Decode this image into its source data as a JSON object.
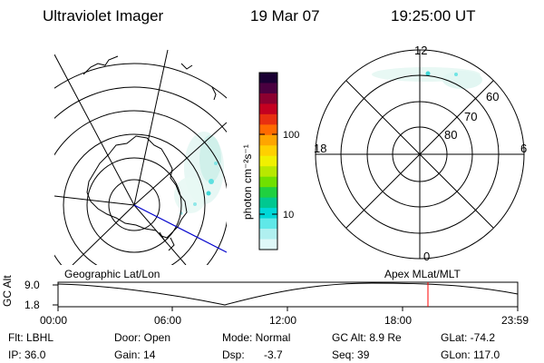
{
  "header": {
    "title": "Ultraviolet Imager",
    "date": "19 Mar 07",
    "time": "19:25:00 UT"
  },
  "left_panel": {
    "label": "Geographic Lat/Lon"
  },
  "right_panel": {
    "label": "Apex MLat/MLT",
    "mlt_labels": {
      "top": "12",
      "left": "18",
      "right": "6",
      "bottom": "0"
    },
    "mlat_labels": [
      "60",
      "70",
      "80"
    ]
  },
  "colorbar": {
    "unit_label": "photon cm⁻²s⁻¹",
    "ticks": [
      "100",
      "10"
    ],
    "colors": [
      "#1a0033",
      "#4a0040",
      "#8b0030",
      "#c40020",
      "#e83010",
      "#ff6a00",
      "#ffa500",
      "#ffd000",
      "#f0f000",
      "#b8e800",
      "#70e000",
      "#20d040",
      "#00c890",
      "#00d8d8",
      "#60e8e8",
      "#b0f0f0",
      "#dff8f8"
    ]
  },
  "altitude_plot": {
    "ylabel": "GC Alt",
    "y_ticks": [
      "9.0",
      "1.8"
    ],
    "x_ticks": [
      "00:00",
      "06:00",
      "12:00",
      "18:00",
      "23:59"
    ],
    "current_time_marker_color": "#ff0000"
  },
  "footer": {
    "row1": {
      "flt": "Flt: LBHL",
      "door": "Door: Open",
      "mode": "Mode: Normal",
      "gc_alt": "GC Alt: 8.9 Re",
      "glat": "GLat: -74.2"
    },
    "row2": {
      "ip": "IP: 36.0",
      "gain": "Gain: 14",
      "dsp_label": "Dsp:",
      "dsp_value": "-3.7",
      "seq": "Seq: 39",
      "glon": "GLon: 117.0"
    }
  }
}
